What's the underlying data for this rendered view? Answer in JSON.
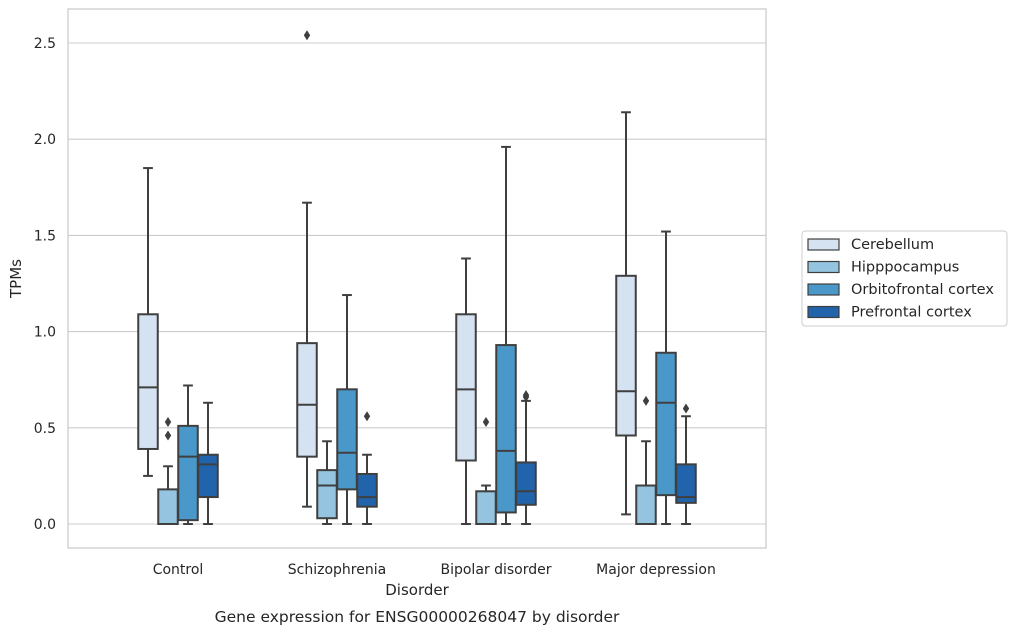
{
  "caption": "Gene expression for ENSG00000268047 by disorder",
  "chart_data": {
    "type": "box",
    "xlabel": "Disorder",
    "ylabel": "TPMs",
    "ylim": [
      -0.12,
      2.68
    ],
    "yticks": [
      0.0,
      0.5,
      1.0,
      1.5,
      2.0,
      2.5
    ],
    "ytick_labels": [
      "0.0",
      "0.5",
      "1.0",
      "1.5",
      "2.0",
      "2.5"
    ],
    "grid": "horizontal",
    "legend_position": "right",
    "categories": [
      "Control",
      "Schizophrenia",
      "Bipolar disorder",
      "Major depression"
    ],
    "series": [
      {
        "name": "Cerebellum",
        "color": "#d4e2f2",
        "boxes": [
          {
            "whislo": 0.25,
            "q1": 0.39,
            "med": 0.71,
            "q3": 1.09,
            "whishi": 1.85,
            "fliers": []
          },
          {
            "whislo": 0.09,
            "q1": 0.35,
            "med": 0.62,
            "q3": 0.94,
            "whishi": 1.67,
            "fliers": [
              2.54
            ]
          },
          {
            "whislo": 0.0,
            "q1": 0.33,
            "med": 0.7,
            "q3": 1.09,
            "whishi": 1.38,
            "fliers": []
          },
          {
            "whislo": 0.05,
            "q1": 0.46,
            "med": 0.69,
            "q3": 1.29,
            "whishi": 2.14,
            "fliers": []
          }
        ]
      },
      {
        "name": "Hipppocampus",
        "color": "#94c4df",
        "boxes": [
          {
            "whislo": 0.0,
            "q1": 0.0,
            "med": 0.0,
            "q3": 0.18,
            "whishi": 0.3,
            "fliers": [
              0.46,
              0.53
            ]
          },
          {
            "whislo": 0.0,
            "q1": 0.03,
            "med": 0.2,
            "q3": 0.28,
            "whishi": 0.43,
            "fliers": []
          },
          {
            "whislo": 0.0,
            "q1": 0.0,
            "med": 0.0,
            "q3": 0.17,
            "whishi": 0.2,
            "fliers": [
              0.53
            ]
          },
          {
            "whislo": 0.0,
            "q1": 0.0,
            "med": 0.0,
            "q3": 0.2,
            "whishi": 0.43,
            "fliers": [
              0.64
            ]
          }
        ]
      },
      {
        "name": "Orbitofrontal cortex",
        "color": "#4a98c9",
        "boxes": [
          {
            "whislo": 0.0,
            "q1": 0.02,
            "med": 0.35,
            "q3": 0.51,
            "whishi": 0.72,
            "fliers": []
          },
          {
            "whislo": 0.0,
            "q1": 0.18,
            "med": 0.37,
            "q3": 0.7,
            "whishi": 1.19,
            "fliers": []
          },
          {
            "whislo": 0.0,
            "q1": 0.06,
            "med": 0.38,
            "q3": 0.93,
            "whishi": 1.96,
            "fliers": []
          },
          {
            "whislo": 0.0,
            "q1": 0.15,
            "med": 0.63,
            "q3": 0.89,
            "whishi": 1.52,
            "fliers": []
          }
        ]
      },
      {
        "name": "Prefrontal cortex",
        "color": "#2164ab",
        "boxes": [
          {
            "whislo": 0.0,
            "q1": 0.14,
            "med": 0.31,
            "q3": 0.36,
            "whishi": 0.63,
            "fliers": []
          },
          {
            "whislo": 0.0,
            "q1": 0.09,
            "med": 0.14,
            "q3": 0.26,
            "whishi": 0.36,
            "fliers": [
              0.56
            ]
          },
          {
            "whislo": 0.0,
            "q1": 0.1,
            "med": 0.17,
            "q3": 0.32,
            "whishi": 0.64,
            "fliers": [
              0.66,
              0.67
            ]
          },
          {
            "whislo": 0.0,
            "q1": 0.11,
            "med": 0.14,
            "q3": 0.31,
            "whishi": 0.56,
            "fliers": [
              0.6
            ]
          }
        ]
      }
    ]
  }
}
